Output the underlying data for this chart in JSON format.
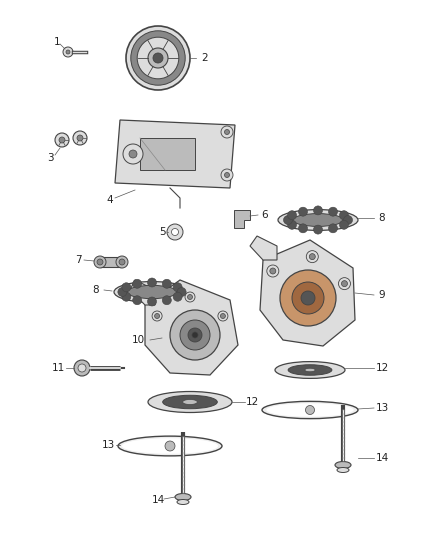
{
  "bg_color": "#ffffff",
  "line_color": "#444444",
  "gray_dark": "#555555",
  "gray_mid": "#888888",
  "gray_light": "#bbbbbb",
  "gray_lighter": "#dddddd",
  "gray_lightest": "#eeeeee",
  "font_size": 7.5,
  "figw": 4.38,
  "figh": 5.33,
  "dpi": 100
}
